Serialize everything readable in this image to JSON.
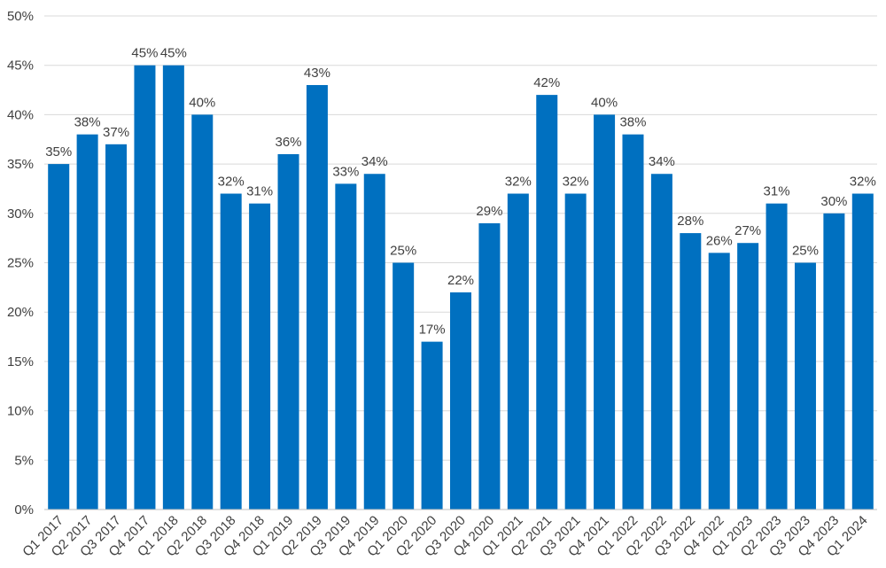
{
  "chart_data": {
    "type": "bar",
    "title": "",
    "xlabel": "",
    "ylabel": "",
    "ylim": [
      0,
      50
    ],
    "yticks": [
      "0%",
      "5%",
      "10%",
      "15%",
      "20%",
      "25%",
      "30%",
      "35%",
      "40%",
      "45%",
      "50%"
    ],
    "categories": [
      "Q1 2017",
      "Q2 2017",
      "Q3 2017",
      "Q4 2017",
      "Q1 2018",
      "Q2 2018",
      "Q3 2018",
      "Q4 2018",
      "Q1 2019",
      "Q2 2019",
      "Q3 2019",
      "Q4 2019",
      "Q1 2020",
      "Q2 2020",
      "Q3 2020",
      "Q4 2020",
      "Q1 2021",
      "Q2 2021",
      "Q3 2021",
      "Q4 2021",
      "Q1 2022",
      "Q2 2022",
      "Q3 2022",
      "Q4 2022",
      "Q1 2023",
      "Q2 2023",
      "Q3 2023",
      "Q4 2023",
      "Q1 2024"
    ],
    "values": [
      35,
      38,
      37,
      45,
      45,
      40,
      32,
      31,
      36,
      43,
      33,
      34,
      25,
      17,
      22,
      29,
      32,
      42,
      32,
      40,
      38,
      34,
      28,
      26,
      27,
      31,
      25,
      30,
      32
    ],
    "data_labels": [
      "35%",
      "38%",
      "37%",
      "45%",
      "45%",
      "40%",
      "32%",
      "31%",
      "36%",
      "43%",
      "33%",
      "34%",
      "25%",
      "17%",
      "22%",
      "29%",
      "32%",
      "42%",
      "32%",
      "40%",
      "38%",
      "34%",
      "28%",
      "26%",
      "27%",
      "31%",
      "25%",
      "30%",
      "32%"
    ],
    "bar_color": "#0070c0",
    "grid": true,
    "legend": "none"
  }
}
